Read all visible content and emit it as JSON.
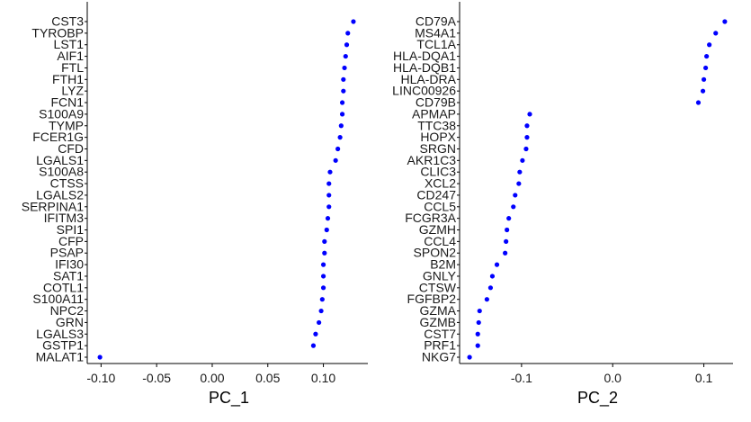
{
  "chart_data": [
    {
      "type": "scatter",
      "xlabel": "PC_1",
      "ylabel": "",
      "xlim": [
        -0.11,
        0.14
      ],
      "xticks": [
        -0.1,
        -0.05,
        0.0,
        0.05,
        0.1
      ],
      "xtick_labels": [
        "-0.10",
        "-0.05",
        "0.00",
        "0.05",
        "0.10"
      ],
      "grid": false,
      "point_color": "#0000ff",
      "genes": [
        "CST3",
        "TYROBP",
        "LST1",
        "AIF1",
        "FTL",
        "FTH1",
        "LYZ",
        "FCN1",
        "S100A9",
        "TYMP",
        "FCER1G",
        "CFD",
        "LGALS1",
        "S100A8",
        "CTSS",
        "LGALS2",
        "SERPINA1",
        "IFITM3",
        "SPI1",
        "CFP",
        "PSAP",
        "IFI30",
        "SAT1",
        "COTL1",
        "S100A11",
        "NPC2",
        "GRN",
        "LGALS3",
        "GSTP1",
        "MALAT1"
      ],
      "values": [
        0.127,
        0.122,
        0.121,
        0.12,
        0.119,
        0.118,
        0.118,
        0.117,
        0.117,
        0.116,
        0.115,
        0.113,
        0.111,
        0.106,
        0.105,
        0.105,
        0.105,
        0.104,
        0.103,
        0.101,
        0.101,
        0.1,
        0.1,
        0.1,
        0.099,
        0.098,
        0.096,
        0.093,
        0.091,
        -0.101
      ]
    },
    {
      "type": "scatter",
      "xlabel": "PC_2",
      "ylabel": "",
      "xlim": [
        -0.165,
        0.132
      ],
      "xticks": [
        -0.1,
        0.0,
        0.1
      ],
      "xtick_labels": [
        "-0.1",
        "0.0",
        "0.1"
      ],
      "grid": false,
      "point_color": "#0000ff",
      "genes": [
        "CD79A",
        "MS4A1",
        "TCL1A",
        "HLA-DQA1",
        "HLA-DQB1",
        "HLA-DRA",
        "LINC00926",
        "CD79B",
        "APMAP",
        "TTC38",
        "HOPX",
        "SRGN",
        "AKR1C3",
        "CLIC3",
        "XCL2",
        "CD247",
        "CCL5",
        "FCGR3A",
        "GZMH",
        "CCL4",
        "SPON2",
        "B2M",
        "GNLY",
        "CTSW",
        "FGFBP2",
        "GZMA",
        "GZMB",
        "CST7",
        "PRF1",
        "NKG7"
      ],
      "values": [
        0.123,
        0.113,
        0.106,
        0.103,
        0.102,
        0.1,
        0.099,
        0.094,
        -0.091,
        -0.094,
        -0.094,
        -0.095,
        -0.099,
        -0.102,
        -0.103,
        -0.107,
        -0.109,
        -0.114,
        -0.116,
        -0.117,
        -0.118,
        -0.127,
        -0.132,
        -0.134,
        -0.138,
        -0.146,
        -0.147,
        -0.148,
        -0.148,
        -0.157
      ]
    }
  ]
}
